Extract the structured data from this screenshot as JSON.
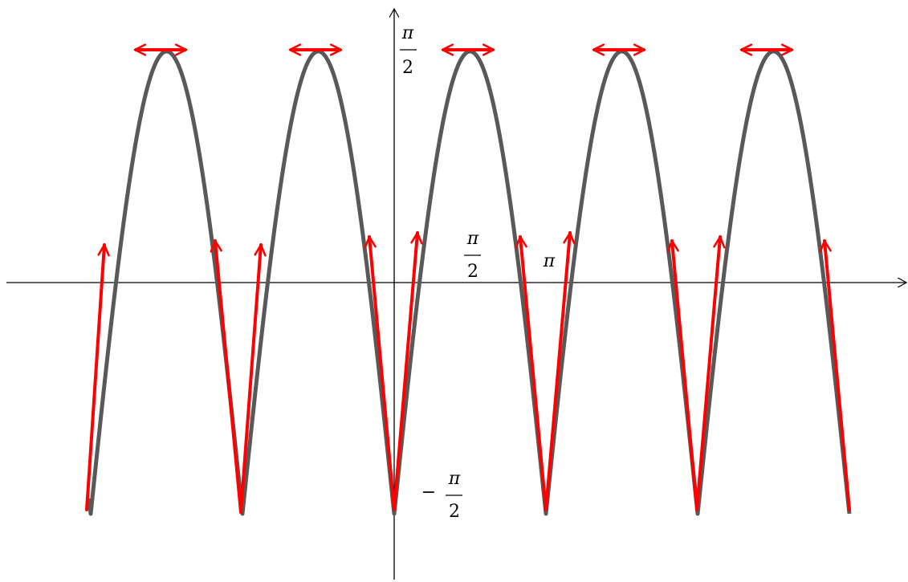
{
  "labels": {
    "y_top": {
      "numerator": "π",
      "denominator": "2"
    },
    "x_half": {
      "numerator": "π",
      "denominator": "2"
    },
    "x_pi": "π",
    "y_bottom": {
      "sign": "−",
      "numerator": "π",
      "denominator": "2"
    }
  }
}
